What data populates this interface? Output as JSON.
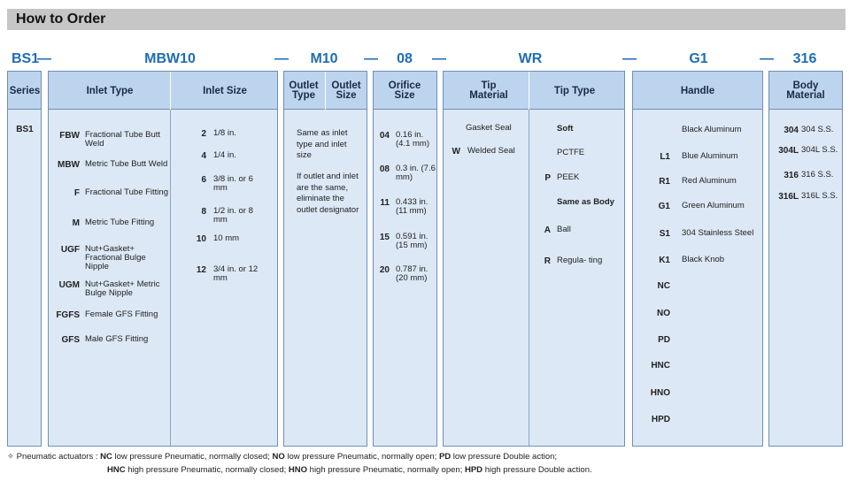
{
  "header": {
    "title": "How to Order"
  },
  "code": [
    "BS1",
    "—",
    "MBW10",
    "—",
    "M10",
    "—",
    "08",
    "—",
    "WR",
    "—",
    "G1",
    "—",
    "316"
  ],
  "series": {
    "header": "Series",
    "items": [
      {
        "code": "BS1"
      }
    ]
  },
  "inlet_type": {
    "header": "Inlet Type",
    "items": [
      {
        "code": "FBW",
        "text": "Fractional Tube Butt Weld"
      },
      {
        "code": "MBW",
        "text": "Metric Tube Butt Weld"
      },
      {
        "code": "F",
        "text": "Fractional Tube Fitting"
      },
      {
        "code": "M",
        "text": "Metric Tube Fitting"
      },
      {
        "code": "UGF",
        "text": "Nut+Gasket+ Fractional Bulge Nipple"
      },
      {
        "code": "UGM",
        "text": "Nut+Gasket+ Metric Bulge Nipple"
      },
      {
        "code": "FGFS",
        "text": "Female GFS Fitting"
      },
      {
        "code": "GFS",
        "text": "Male GFS Fitting"
      }
    ]
  },
  "inlet_size": {
    "header": "Inlet Size",
    "items": [
      {
        "code": "2",
        "text": "1/8 in."
      },
      {
        "code": "4",
        "text": "1/4 in."
      },
      {
        "code": "6",
        "text": "3/8 in. or 6 mm"
      },
      {
        "code": "8",
        "text": "1/2 in. or 8 mm"
      },
      {
        "code": "10",
        "text": "10 mm"
      },
      {
        "code": "12",
        "text": "3/4 in. or 12 mm"
      }
    ]
  },
  "outlet": {
    "header_type": "Outlet Type",
    "header_size": "Outlet Size",
    "notes": [
      "Same as inlet type and inlet size",
      "If outlet and inlet are the same, eliminate the outlet designator"
    ]
  },
  "orifice": {
    "header": "Orifice Size",
    "items": [
      {
        "code": "04",
        "text": "0.16 in. (4.1 mm)"
      },
      {
        "code": "08",
        "text": "0.3 in. (7.6 mm)"
      },
      {
        "code": "11",
        "text": "0.433 in. (11 mm)"
      },
      {
        "code": "15",
        "text": "0.591 in. (15 mm)"
      },
      {
        "code": "20",
        "text": "0.787 in. (20 mm)"
      }
    ]
  },
  "tip_material": {
    "header": "Tip Material",
    "items": [
      {
        "text": "Gasket Seal"
      },
      {
        "code": "W",
        "text": "Welded Seal"
      }
    ]
  },
  "tip_type": {
    "header": "Tip Type",
    "items": [
      {
        "text": "Soft"
      },
      {
        "text": "PCTFE"
      },
      {
        "code": "P",
        "text": "PEEK"
      },
      {
        "text": "Same as Body"
      },
      {
        "code": "A",
        "text": "Ball"
      },
      {
        "code": "R",
        "text": "Regula- ting"
      }
    ]
  },
  "handle": {
    "header": "Handle",
    "items": [
      {
        "text": "Black Aluminum"
      },
      {
        "code": "L1",
        "text": "Blue Aluminum"
      },
      {
        "code": "R1",
        "text": "Red Aluminum"
      },
      {
        "code": "G1",
        "text": "Green Aluminum"
      },
      {
        "code": "S1",
        "text": "304 Stainless Steel"
      },
      {
        "code": "K1",
        "text": "Black Knob"
      },
      {
        "code": "NC"
      },
      {
        "code": "NO"
      },
      {
        "code": "PD"
      },
      {
        "code": "HNC"
      },
      {
        "code": "HNO"
      },
      {
        "code": "HPD"
      }
    ]
  },
  "body": {
    "header": "Body Material",
    "items": [
      {
        "code": "304",
        "text": "304 S.S."
      },
      {
        "code": "304L",
        "text": "304L S.S."
      },
      {
        "code": "316",
        "text": "316 S.S."
      },
      {
        "code": "316L",
        "text": "316L S.S."
      }
    ]
  },
  "footnote": {
    "prefix": "Pneumatic actuators :",
    "items": [
      {
        "code": "NC",
        "text": "low pressure Pneumatic, normally closed;"
      },
      {
        "code": "NO",
        "text": "low pressure Pneumatic, normally open;"
      },
      {
        "code": "PD",
        "text": "low pressure Double action;"
      },
      {
        "code": "HNC",
        "text": "high pressure Pneumatic, normally closed;"
      },
      {
        "code": "HNO",
        "text": "high pressure Pneumatic, normally open;"
      },
      {
        "code": "HPD",
        "text": "high pressure Double action."
      }
    ]
  }
}
